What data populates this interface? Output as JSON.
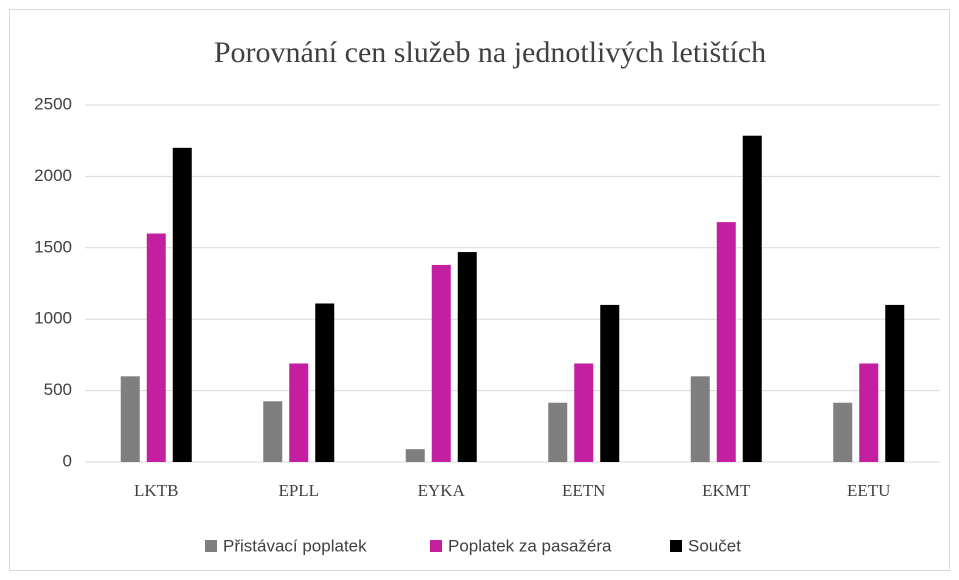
{
  "chart_data": {
    "type": "bar",
    "title": "Porovnání cen služeb na jednotlivých letištích",
    "categories": [
      "LKTB",
      "EPLL",
      "EYKA",
      "EETN",
      "EKMT",
      "EETU"
    ],
    "series": [
      {
        "name": "Přistávací poplatek",
        "color": "#7f7f7f",
        "values": [
          600,
          425,
          90,
          415,
          600,
          415
        ]
      },
      {
        "name": "Poplatek za pasažéra",
        "color": "#c41fa0",
        "values": [
          1600,
          690,
          1380,
          690,
          1680,
          690
        ]
      },
      {
        "name": "Součet",
        "color": "#000000",
        "values": [
          2200,
          1110,
          1470,
          1100,
          2285,
          1100
        ]
      }
    ],
    "ylim": [
      0,
      2500
    ],
    "yticks": [
      0,
      500,
      1000,
      1500,
      2000,
      2500
    ],
    "grid": true,
    "legend": "bottom"
  }
}
